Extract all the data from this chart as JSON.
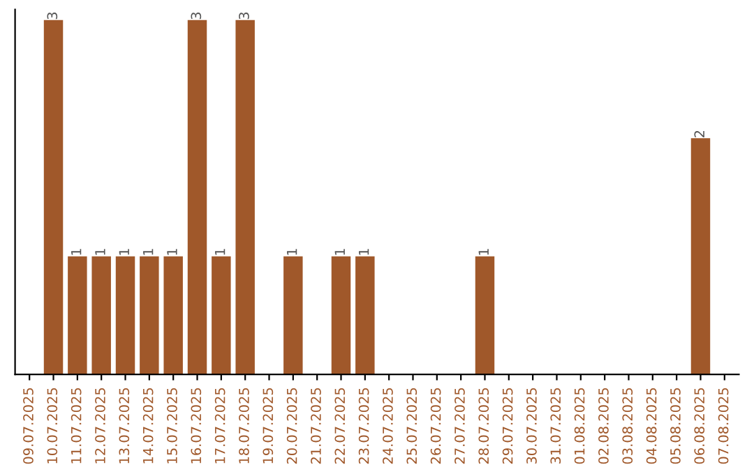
{
  "chart_data": {
    "type": "bar",
    "categories": [
      "09.07.2025",
      "10.07.2025",
      "11.07.2025",
      "12.07.2025",
      "13.07.2025",
      "14.07.2025",
      "15.07.2025",
      "16.07.2025",
      "17.07.2025",
      "18.07.2025",
      "19.07.2025",
      "20.07.2025",
      "21.07.2025",
      "22.07.2025",
      "23.07.2025",
      "24.07.2025",
      "25.07.2025",
      "26.07.2025",
      "27.07.2025",
      "28.07.2025",
      "29.07.2025",
      "30.07.2025",
      "31.07.2025",
      "01.08.2025",
      "02.08.2025",
      "03.08.2025",
      "04.08.2025",
      "05.08.2025",
      "06.08.2025",
      "07.08.2025"
    ],
    "values": [
      null,
      3,
      1,
      1,
      1,
      1,
      1,
      3,
      1,
      3,
      null,
      1,
      null,
      1,
      1,
      null,
      null,
      null,
      null,
      1,
      null,
      null,
      null,
      null,
      null,
      null,
      null,
      null,
      2,
      null
    ],
    "color": "#a0582a",
    "data_labels": true,
    "grid": false,
    "legend": false,
    "tick_labels": "x"
  }
}
